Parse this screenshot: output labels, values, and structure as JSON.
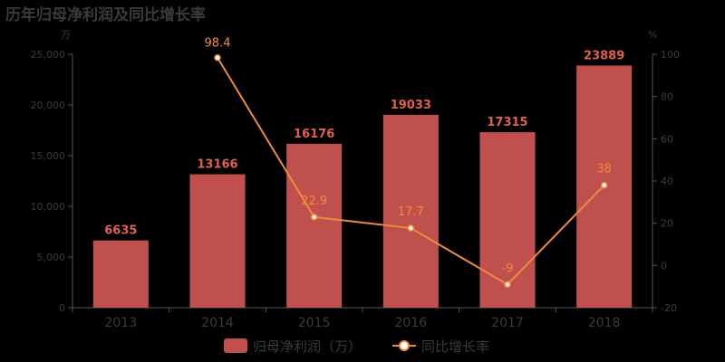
{
  "title": "历年归母净利润及同比增长率",
  "colors": {
    "bar": "#c0504d",
    "line": "#f08a3c",
    "bar_label": "#e06050",
    "text": "#3a3a3a",
    "axis": "#555555"
  },
  "chart_data": {
    "type": "bar",
    "categories": [
      "2013",
      "2014",
      "2015",
      "2016",
      "2017",
      "2018"
    ],
    "series": [
      {
        "name": "归母净利润（万）",
        "type": "bar",
        "axis": "left",
        "values": [
          6635,
          13166,
          16176,
          19033,
          17315,
          23889
        ],
        "labels": [
          "6635",
          "13166",
          "16176",
          "19033",
          "17315",
          "23889"
        ]
      },
      {
        "name": "同比增长率",
        "type": "line",
        "axis": "right",
        "values": [
          null,
          98.4,
          22.9,
          17.7,
          -9,
          38
        ],
        "labels": [
          "",
          "98.4",
          "22.9",
          "17.7",
          "-9",
          "38"
        ]
      }
    ],
    "y_left": {
      "unit": "万",
      "ylim": [
        0,
        25000
      ],
      "ticks": [
        0,
        5000,
        10000,
        15000,
        20000,
        25000
      ],
      "tick_labels": [
        "0",
        "5,000",
        "10,000",
        "15,000",
        "20,000",
        "25,000"
      ]
    },
    "y_right": {
      "unit": "%",
      "ylim": [
        -20,
        100
      ],
      "ticks": [
        -20,
        0,
        20,
        40,
        60,
        80,
        100
      ],
      "tick_labels": [
        "-20",
        "0",
        "20",
        "40",
        "60",
        "80",
        "100"
      ]
    },
    "legend": {
      "position": "bottom-center",
      "items": [
        "归母净利润（万）",
        "同比增长率"
      ]
    },
    "grid": false
  }
}
